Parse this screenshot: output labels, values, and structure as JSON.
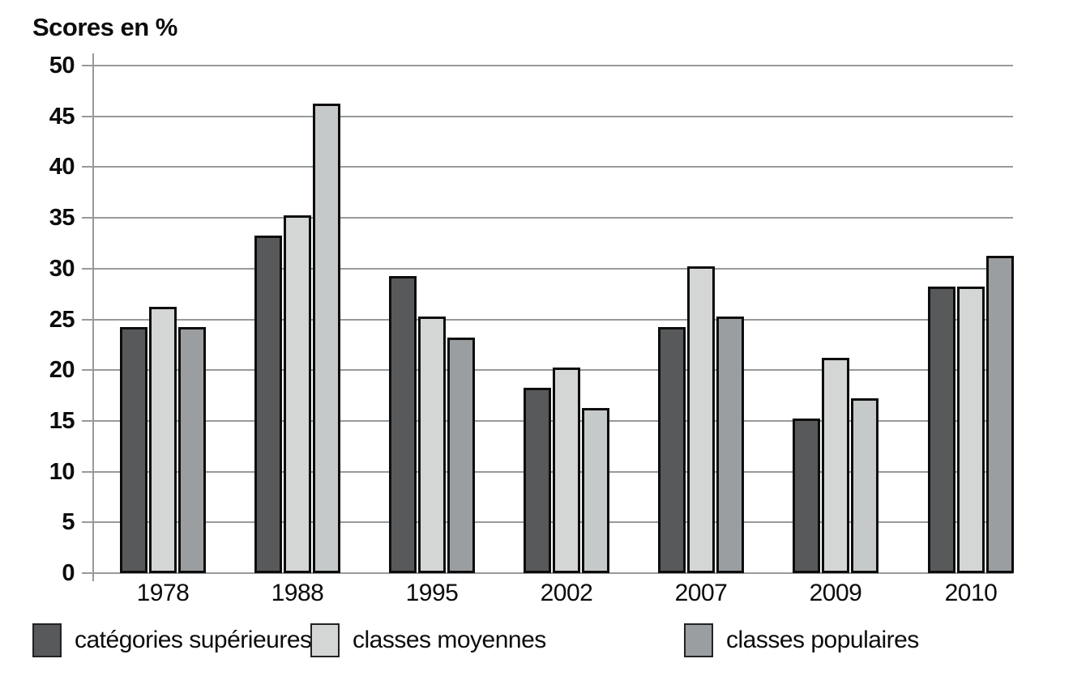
{
  "chart_data": {
    "type": "bar",
    "title": "Scores en %",
    "categories": [
      "1978",
      "1988",
      "1995",
      "2002",
      "2007",
      "2009",
      "2010"
    ],
    "series": [
      {
        "name": "catégories supérieures",
        "color": "#58595a",
        "values": [
          24,
          33,
          29,
          18,
          24,
          15,
          28
        ]
      },
      {
        "name": "classes moyennes",
        "color": "#d4d6d6",
        "values": [
          26,
          35,
          25,
          20,
          30,
          21,
          28
        ]
      },
      {
        "name": "classes populaires",
        "color": "#9b9ea0",
        "alt_color": "#c6c9c9",
        "alt_categories": [
          "1988",
          "2002",
          "2009"
        ],
        "values": [
          24,
          46,
          23,
          16,
          25,
          17,
          31
        ]
      }
    ],
    "ylim": [
      0,
      50
    ],
    "ytick_step": 5,
    "ytick_labels": [
      "0",
      "5",
      "10",
      "15",
      "20",
      "25",
      "30",
      "35",
      "40",
      "45",
      "50"
    ],
    "grid": true,
    "legend_position": "bottom",
    "bar_border_color": "#0d0d0d",
    "grid_color": "#97999b"
  }
}
